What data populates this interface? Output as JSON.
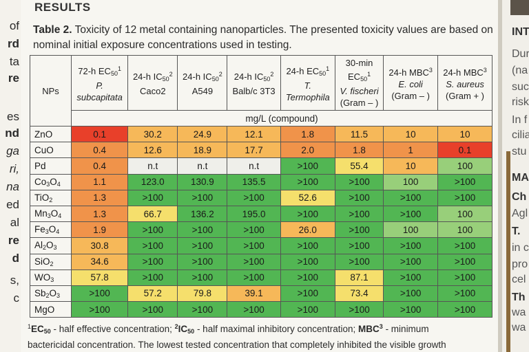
{
  "left_fragments": [
    "of",
    "rd",
    "ta",
    "re",
    "es",
    "nd",
    "ga",
    "ri,",
    "na",
    "ed",
    "al",
    "re",
    "d",
    "s,",
    "c"
  ],
  "results_heading": "RESULTS",
  "caption": {
    "label": "Table 2.",
    "text": " Toxicity of 12 metal containing nanoparticles. The presented toxicity values are based on nominal initial exposure concentrations used in testing."
  },
  "table": {
    "np_header": "NPs",
    "columns": [
      {
        "line1": "72-h EC",
        "sub": "50",
        "sup": "1",
        "line2": "P.",
        "line3": "subcapitata",
        "italic": true
      },
      {
        "line1": "24-h IC",
        "sub": "50",
        "sup": "2",
        "line2": "Caco2",
        "line3": "",
        "italic": false
      },
      {
        "line1": "24-h IC",
        "sub": "50",
        "sup": "2",
        "line2": "A549",
        "line3": "",
        "italic": false
      },
      {
        "line1": "24-h IC",
        "sub": "50",
        "sup": "2",
        "line2": "Balb/c 3T3",
        "line3": "",
        "italic": false
      },
      {
        "line1": "24-h EC",
        "sub": "50",
        "sup": "1",
        "line2": "T.",
        "line3": "Termophila",
        "italic": true
      },
      {
        "line1": "30-min",
        "sub": "",
        "sup": "",
        "line1b": "EC",
        "sub2": "50",
        "sup2": "1",
        "line2": "V. fischeri",
        "line3": "(Gram – )",
        "italic": true
      },
      {
        "line1": "24-h MBC",
        "sub": "",
        "sup": "3",
        "line2": "E. coli",
        "line3": "(Gram – )",
        "italic": true
      },
      {
        "line1": "24-h MBC",
        "sub": "",
        "sup": "3",
        "line2": "S. aureus",
        "line3": "(Gram + )",
        "italic": true
      }
    ],
    "unit_label": "mg/L (compound)",
    "colors": {
      "red": "#e8402a",
      "orange": "#f0934a",
      "light_orange": "#f6b859",
      "yellow": "#f5df6c",
      "pale_green": "#98cf7a",
      "green": "#52b653",
      "white": "#efefea"
    },
    "rows": [
      {
        "np": "ZnO",
        "sub": [],
        "cells": [
          [
            "0.1",
            "red"
          ],
          [
            "30.2",
            "light_orange"
          ],
          [
            "24.9",
            "light_orange"
          ],
          [
            "12.1",
            "light_orange"
          ],
          [
            "1.8",
            "orange"
          ],
          [
            "11.5",
            "light_orange"
          ],
          [
            "10",
            "light_orange"
          ],
          [
            "10",
            "light_orange"
          ]
        ]
      },
      {
        "np": "CuO",
        "sub": [],
        "cells": [
          [
            "0.4",
            "orange"
          ],
          [
            "12.6",
            "light_orange"
          ],
          [
            "18.9",
            "light_orange"
          ],
          [
            "17.7",
            "light_orange"
          ],
          [
            "2.0",
            "orange"
          ],
          [
            "1.8",
            "orange"
          ],
          [
            "1",
            "orange"
          ],
          [
            "0.1",
            "red"
          ]
        ]
      },
      {
        "np": "Pd",
        "sub": [],
        "cells": [
          [
            "0.4",
            "orange"
          ],
          [
            "n.t",
            "white"
          ],
          [
            "n.t",
            "white"
          ],
          [
            "n.t",
            "white"
          ],
          [
            ">100",
            "green"
          ],
          [
            "55.4",
            "yellow"
          ],
          [
            "10",
            "light_orange"
          ],
          [
            "100",
            "pale_green"
          ]
        ]
      },
      {
        "np": "Co3O4",
        "parts": [
          "Co",
          "3",
          "O",
          "4"
        ],
        "cells": [
          [
            "1.1",
            "orange"
          ],
          [
            "123.0",
            "green"
          ],
          [
            "130.9",
            "green"
          ],
          [
            "135.5",
            "green"
          ],
          [
            ">100",
            "green"
          ],
          [
            ">100",
            "green"
          ],
          [
            "100",
            "pale_green"
          ],
          [
            ">100",
            "green"
          ]
        ]
      },
      {
        "np": "TiO2",
        "parts": [
          "TiO",
          "2"
        ],
        "cells": [
          [
            "1.3",
            "orange"
          ],
          [
            ">100",
            "green"
          ],
          [
            ">100",
            "green"
          ],
          [
            ">100",
            "green"
          ],
          [
            "52.6",
            "yellow"
          ],
          [
            ">100",
            "green"
          ],
          [
            ">100",
            "green"
          ],
          [
            ">100",
            "green"
          ]
        ]
      },
      {
        "np": "Mn3O4",
        "parts": [
          "Mn",
          "3",
          "O",
          "4"
        ],
        "cells": [
          [
            "1.3",
            "orange"
          ],
          [
            "66.7",
            "yellow"
          ],
          [
            "136.2",
            "green"
          ],
          [
            "195.0",
            "green"
          ],
          [
            ">100",
            "green"
          ],
          [
            ">100",
            "green"
          ],
          [
            ">100",
            "green"
          ],
          [
            "100",
            "pale_green"
          ]
        ]
      },
      {
        "np": "Fe3O4",
        "parts": [
          "Fe",
          "3",
          "O",
          "4"
        ],
        "cells": [
          [
            "1.9",
            "orange"
          ],
          [
            ">100",
            "green"
          ],
          [
            ">100",
            "green"
          ],
          [
            ">100",
            "green"
          ],
          [
            "26.0",
            "light_orange"
          ],
          [
            ">100",
            "green"
          ],
          [
            "100",
            "pale_green"
          ],
          [
            "100",
            "pale_green"
          ]
        ]
      },
      {
        "np": "Al2O3",
        "parts": [
          "Al",
          "2",
          "O",
          "3"
        ],
        "cells": [
          [
            "30.8",
            "light_orange"
          ],
          [
            ">100",
            "green"
          ],
          [
            ">100",
            "green"
          ],
          [
            ">100",
            "green"
          ],
          [
            ">100",
            "green"
          ],
          [
            ">100",
            "green"
          ],
          [
            ">100",
            "green"
          ],
          [
            ">100",
            "green"
          ]
        ]
      },
      {
        "np": "SiO2",
        "parts": [
          "SiO",
          "2"
        ],
        "cells": [
          [
            "34.6",
            "light_orange"
          ],
          [
            ">100",
            "green"
          ],
          [
            ">100",
            "green"
          ],
          [
            ">100",
            "green"
          ],
          [
            ">100",
            "green"
          ],
          [
            ">100",
            "green"
          ],
          [
            ">100",
            "green"
          ],
          [
            ">100",
            "green"
          ]
        ]
      },
      {
        "np": "WO3",
        "parts": [
          "WO",
          "3"
        ],
        "cells": [
          [
            "57.8",
            "yellow"
          ],
          [
            ">100",
            "green"
          ],
          [
            ">100",
            "green"
          ],
          [
            ">100",
            "green"
          ],
          [
            ">100",
            "green"
          ],
          [
            "87.1",
            "yellow"
          ],
          [
            ">100",
            "green"
          ],
          [
            ">100",
            "green"
          ]
        ]
      },
      {
        "np": "Sb2O3",
        "parts": [
          "Sb",
          "2",
          "O",
          "3"
        ],
        "cells": [
          [
            ">100",
            "green"
          ],
          [
            "57.2",
            "yellow"
          ],
          [
            "79.8",
            "yellow"
          ],
          [
            "39.1",
            "light_orange"
          ],
          [
            ">100",
            "green"
          ],
          [
            "73.4",
            "yellow"
          ],
          [
            ">100",
            "green"
          ],
          [
            ">100",
            "green"
          ]
        ]
      },
      {
        "np": "MgO",
        "sub": [],
        "cells": [
          [
            ">100",
            "green"
          ],
          [
            ">100",
            "green"
          ],
          [
            ">100",
            "green"
          ],
          [
            ">100",
            "green"
          ],
          [
            ">100",
            "green"
          ],
          [
            ">100",
            "green"
          ],
          [
            ">100",
            "green"
          ],
          [
            ">100",
            "green"
          ]
        ]
      }
    ]
  },
  "footnote": {
    "line1_a": "EC",
    "line1_a_sub": "50",
    "line1_b": " - half effective concentration; ",
    "line1_c": "IC",
    "line1_c_sub": "50",
    "line1_d": " - half maximal inhibitory concentration; ",
    "line1_e": "MBC",
    "line1_f": " - minimum",
    "line2": "bactericidal concentration. The lowest tested concentration that completely inhibited the visible growth"
  },
  "right_fragments": {
    "heading1": "INT",
    "lines": [
      "Dur",
      "(na",
      "suc",
      "risk",
      "In f",
      "cilia",
      "stu"
    ],
    "heading2": "MA",
    "heading3": "Ch",
    "line_a": "Agl",
    "heading4": "T.",
    "lines_b": [
      "in c",
      "pro",
      "cel"
    ],
    "heading5": "Th",
    "lines_c": [
      "wa",
      "wa"
    ]
  }
}
